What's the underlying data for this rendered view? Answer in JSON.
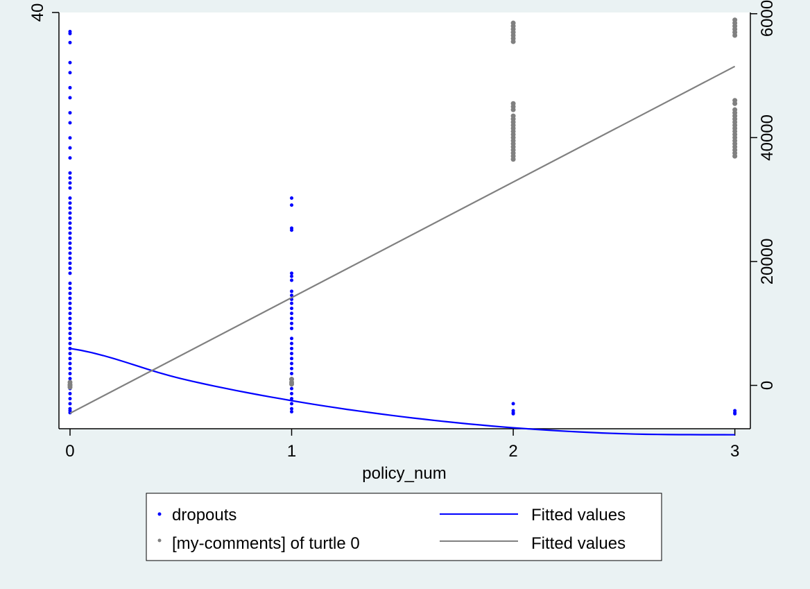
{
  "chart_data": {
    "type": "scatter",
    "xlabel": "policy_num",
    "x_ticks": [
      0,
      1,
      2,
      3
    ],
    "xlim": [
      -0.05,
      3.07
    ],
    "left_axis": {
      "ylabel": "",
      "ticks": [
        40
      ],
      "ylim": [
        -1.5,
        40
      ],
      "tick_labels": [
        "40"
      ]
    },
    "right_axis": {
      "ylabel": "",
      "ticks": [
        0,
        20000,
        40000,
        60000
      ],
      "ylim": [
        -7000,
        60200
      ],
      "tick_labels": [
        "0",
        "20000",
        "40000",
        "60000"
      ]
    },
    "series": [
      {
        "name": "dropouts",
        "kind": "scatter",
        "axis": "left",
        "color": "#0000ff",
        "points": [
          [
            0,
            38.1
          ],
          [
            0,
            37.9
          ],
          [
            0,
            37.0
          ],
          [
            0,
            35.0
          ],
          [
            0,
            34.0
          ],
          [
            0,
            32.5
          ],
          [
            0,
            31.5
          ],
          [
            0,
            30.0
          ],
          [
            0,
            29.0
          ],
          [
            0,
            27.5
          ],
          [
            0,
            26.5
          ],
          [
            0,
            25.5
          ],
          [
            0,
            24.0
          ],
          [
            0,
            23.5
          ],
          [
            0,
            23.0
          ],
          [
            0,
            22.5
          ],
          [
            0,
            21.5
          ],
          [
            0,
            21.0
          ],
          [
            0,
            20.5
          ],
          [
            0,
            20.0
          ],
          [
            0,
            19.5
          ],
          [
            0,
            19.0
          ],
          [
            0,
            18.5
          ],
          [
            0,
            18.0
          ],
          [
            0,
            17.5
          ],
          [
            0,
            17.0
          ],
          [
            0,
            16.5
          ],
          [
            0,
            16.0
          ],
          [
            0,
            15.5
          ],
          [
            0,
            15.0
          ],
          [
            0,
            14.5
          ],
          [
            0,
            14.0
          ],
          [
            0,
            13.0
          ],
          [
            0,
            12.5
          ],
          [
            0,
            12.0
          ],
          [
            0,
            11.5
          ],
          [
            0,
            11.0
          ],
          [
            0,
            10.5
          ],
          [
            0,
            10.0
          ],
          [
            0,
            9.5
          ],
          [
            0,
            9.0
          ],
          [
            0,
            8.5
          ],
          [
            0,
            8.0
          ],
          [
            0,
            7.5
          ],
          [
            0,
            7.0
          ],
          [
            0,
            6.5
          ],
          [
            0,
            6.0
          ],
          [
            0,
            5.5
          ],
          [
            0,
            5.0
          ],
          [
            0,
            4.5
          ],
          [
            0,
            4.0
          ],
          [
            0,
            3.5
          ],
          [
            0,
            3.0
          ],
          [
            0,
            2.5
          ],
          [
            0,
            2.0
          ],
          [
            0,
            1.5
          ],
          [
            0,
            1.0
          ],
          [
            0,
            0.5
          ],
          [
            0,
            0.3
          ],
          [
            0,
            0.1
          ],
          [
            1,
            21.5
          ],
          [
            1,
            20.8
          ],
          [
            1,
            18.5
          ],
          [
            1,
            18.3
          ],
          [
            1,
            14.0
          ],
          [
            1,
            13.7
          ],
          [
            1,
            13.3
          ],
          [
            1,
            12.2
          ],
          [
            1,
            11.8
          ],
          [
            1,
            11.4
          ],
          [
            1,
            11.0
          ],
          [
            1,
            10.5
          ],
          [
            1,
            10.0
          ],
          [
            1,
            9.5
          ],
          [
            1,
            9.0
          ],
          [
            1,
            8.5
          ],
          [
            1,
            7.5
          ],
          [
            1,
            7.0
          ],
          [
            1,
            6.5
          ],
          [
            1,
            6.0
          ],
          [
            1,
            5.5
          ],
          [
            1,
            5.0
          ],
          [
            1,
            4.5
          ],
          [
            1,
            4.0
          ],
          [
            1,
            3.5
          ],
          [
            1,
            3.0
          ],
          [
            1,
            2.5
          ],
          [
            1,
            2.0
          ],
          [
            1,
            1.5
          ],
          [
            1,
            1.0
          ],
          [
            1,
            0.5
          ],
          [
            1,
            0.2
          ],
          [
            2,
            1.0
          ],
          [
            2,
            0.3
          ],
          [
            2,
            0.1
          ],
          [
            2,
            0.0
          ],
          [
            3,
            0.3
          ],
          [
            3,
            0.1
          ],
          [
            3,
            0.0
          ]
        ]
      },
      {
        "name": "[my-comments] of turtle 0",
        "kind": "scatter",
        "axis": "right",
        "color": "#808080",
        "points": [
          [
            0,
            100
          ],
          [
            0,
            500
          ],
          [
            0,
            0
          ],
          [
            0,
            -300
          ],
          [
            1,
            500
          ],
          [
            1,
            1000
          ],
          [
            1,
            200
          ],
          [
            2,
            58500
          ],
          [
            2,
            58000
          ],
          [
            2,
            57500
          ],
          [
            2,
            57000
          ],
          [
            2,
            56500
          ],
          [
            2,
            56000
          ],
          [
            2,
            55500
          ],
          [
            2,
            45500
          ],
          [
            2,
            45000
          ],
          [
            2,
            44500
          ],
          [
            2,
            43500
          ],
          [
            2,
            43000
          ],
          [
            2,
            42500
          ],
          [
            2,
            42000
          ],
          [
            2,
            41500
          ],
          [
            2,
            41000
          ],
          [
            2,
            40500
          ],
          [
            2,
            40000
          ],
          [
            2,
            39500
          ],
          [
            2,
            39000
          ],
          [
            2,
            38500
          ],
          [
            2,
            38000
          ],
          [
            2,
            37500
          ],
          [
            2,
            37000
          ],
          [
            2,
            36500
          ],
          [
            3,
            59000
          ],
          [
            3,
            58500
          ],
          [
            3,
            58000
          ],
          [
            3,
            57500
          ],
          [
            3,
            57000
          ],
          [
            3,
            56500
          ],
          [
            3,
            46000
          ],
          [
            3,
            45500
          ],
          [
            3,
            44500
          ],
          [
            3,
            44000
          ],
          [
            3,
            43500
          ],
          [
            3,
            43000
          ],
          [
            3,
            42500
          ],
          [
            3,
            42000
          ],
          [
            3,
            41500
          ],
          [
            3,
            41000
          ],
          [
            3,
            40500
          ],
          [
            3,
            40000
          ],
          [
            3,
            39500
          ],
          [
            3,
            39000
          ],
          [
            3,
            38500
          ],
          [
            3,
            38000
          ],
          [
            3,
            37500
          ],
          [
            3,
            37000
          ]
        ]
      },
      {
        "name": "Fitted values",
        "kind": "line",
        "axis": "left",
        "color": "#0000ff",
        "x": [
          0,
          0.5,
          1,
          1.5,
          2,
          2.5,
          3
        ],
        "values": [
          6.5,
          3.5,
          1.3,
          -0.3,
          -1.4,
          -2.0,
          -2.1
        ]
      },
      {
        "name": "Fitted values",
        "kind": "line",
        "axis": "right",
        "color": "#808080",
        "x": [
          0,
          3
        ],
        "values": [
          -4500,
          51500
        ]
      }
    ],
    "legend": {
      "position": "bottom",
      "entries": [
        {
          "label": "dropouts",
          "kind": "marker",
          "color": "#0000ff"
        },
        {
          "label": "Fitted values",
          "kind": "line",
          "color": "#0000ff"
        },
        {
          "label": "[my-comments] of turtle 0",
          "kind": "marker",
          "color": "#808080"
        },
        {
          "label": "Fitted values",
          "kind": "line",
          "color": "#808080"
        }
      ]
    },
    "grid": false,
    "colors": {
      "background": "#eaf2f3",
      "plot_background": "#ffffff"
    }
  }
}
